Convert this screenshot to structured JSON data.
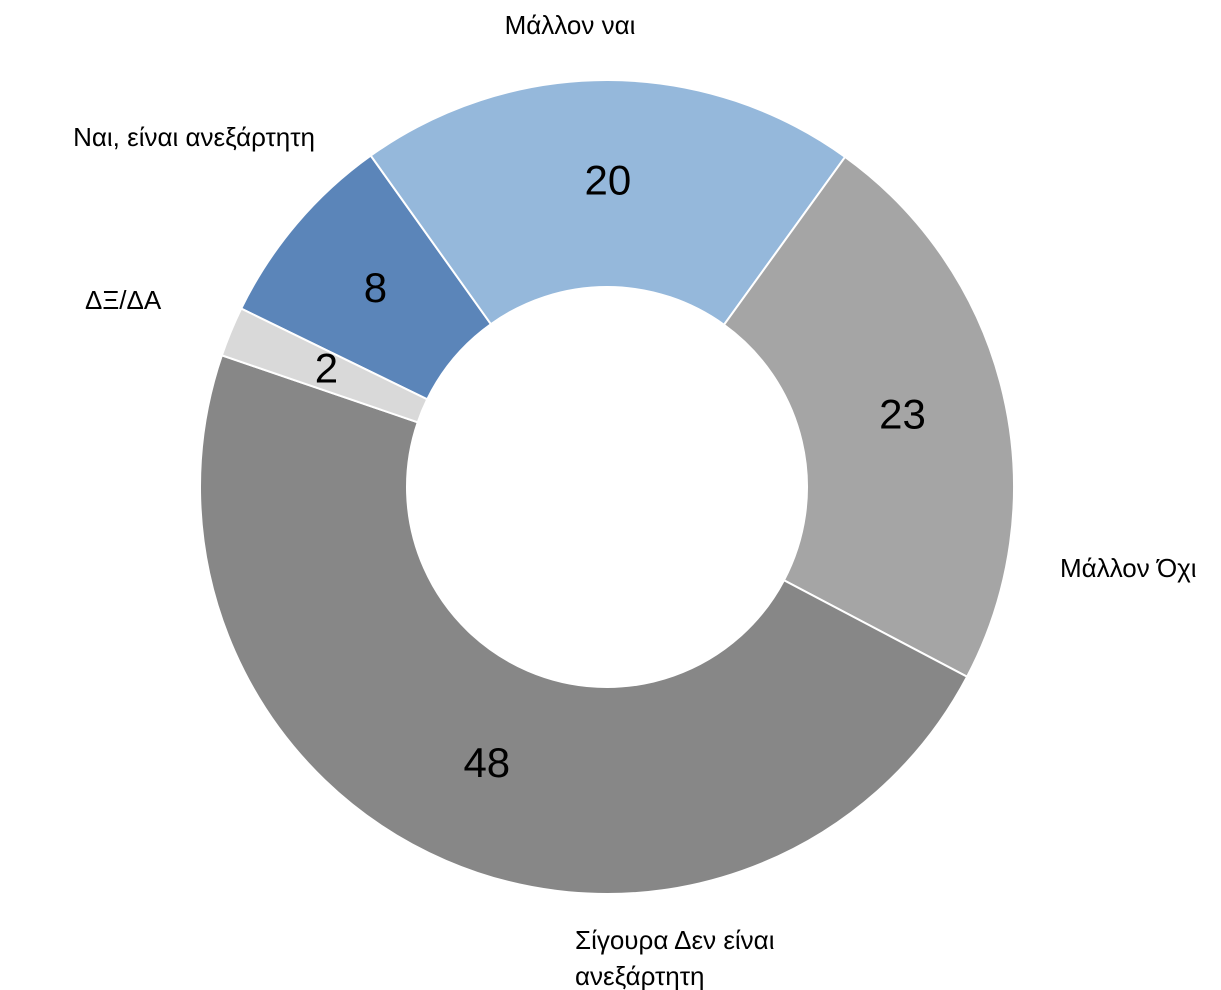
{
  "chart_data": {
    "type": "donut",
    "categories": [
      "Ναι, είναι ανεξάρτητη",
      "Μάλλον ναι",
      "Μάλλον Όχι",
      "Σίγουρα Δεν είναι ανεξάρτητη",
      "ΔΞ/ΔΑ"
    ],
    "values": [
      8,
      20,
      23,
      48,
      2
    ],
    "colors": [
      "#5b85b9",
      "#95b8db",
      "#a5a5a5",
      "#878787",
      "#d9d9d9"
    ]
  }
}
